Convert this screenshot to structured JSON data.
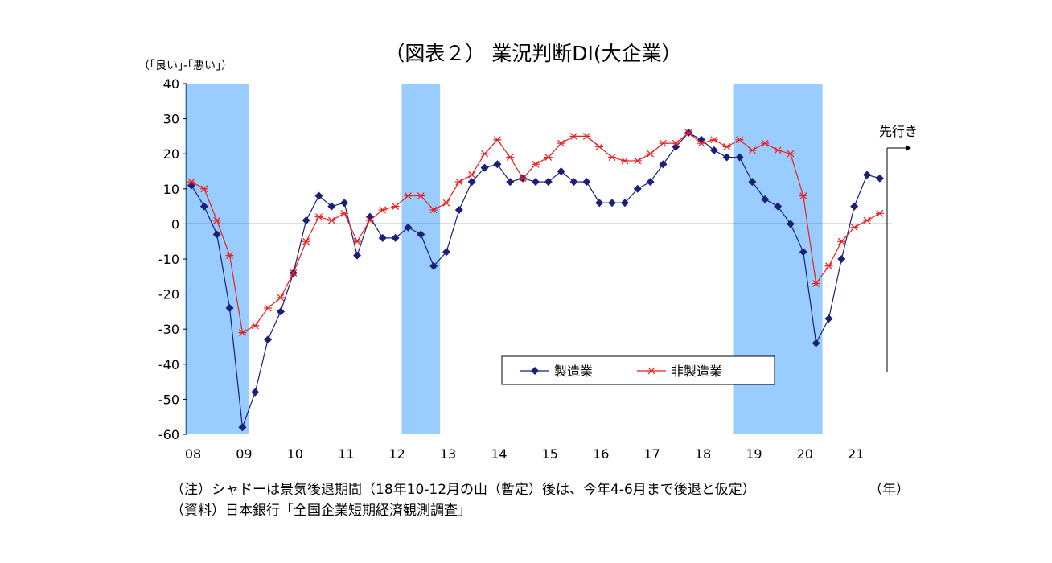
{
  "chart_data": {
    "type": "line",
    "title": "（図表２） 業況判断DI(大企業）",
    "ylabel": "（｢良い｣-｢悪い｣）",
    "xlabel": "（年）",
    "ylim": [
      -60,
      40
    ],
    "yticks": [
      40,
      30,
      20,
      10,
      0,
      -10,
      -20,
      -30,
      -40,
      -50,
      -60
    ],
    "xtick_labels": [
      "08",
      "09",
      "10",
      "11",
      "12",
      "13",
      "14",
      "15",
      "16",
      "17",
      "18",
      "19",
      "20",
      "21"
    ],
    "forecast_label": "先行き",
    "grid": false,
    "legend_position": "bottom-center",
    "recession_shading": [
      {
        "from": "2008Q1",
        "to": "2009Q1"
      },
      {
        "from": "2012Q2",
        "to": "2012Q4"
      },
      {
        "from": "2018Q4",
        "to": "2020Q2"
      }
    ],
    "x": [
      "2008Q1",
      "2008Q2",
      "2008Q3",
      "2008Q4",
      "2009Q1",
      "2009Q2",
      "2009Q3",
      "2009Q4",
      "2010Q1",
      "2010Q2",
      "2010Q3",
      "2010Q4",
      "2011Q1",
      "2011Q2",
      "2011Q3",
      "2011Q4",
      "2012Q1",
      "2012Q2",
      "2012Q3",
      "2012Q4",
      "2013Q1",
      "2013Q2",
      "2013Q3",
      "2013Q4",
      "2014Q1",
      "2014Q2",
      "2014Q3",
      "2014Q4",
      "2015Q1",
      "2015Q2",
      "2015Q3",
      "2015Q4",
      "2016Q1",
      "2016Q2",
      "2016Q3",
      "2016Q4",
      "2017Q1",
      "2017Q2",
      "2017Q3",
      "2017Q4",
      "2018Q1",
      "2018Q2",
      "2018Q3",
      "2018Q4",
      "2019Q1",
      "2019Q2",
      "2019Q3",
      "2019Q4",
      "2020Q1",
      "2020Q2",
      "2020Q3",
      "2020Q4",
      "2021Q1",
      "2021Q2",
      "2021Q3"
    ],
    "series": [
      {
        "name": "製造業",
        "color": "#1a1f7a",
        "marker": "diamond",
        "values": [
          11,
          5,
          -3,
          -24,
          -58,
          -48,
          -33,
          -25,
          -14,
          1,
          8,
          5,
          6,
          -9,
          2,
          -4,
          -4,
          -1,
          -3,
          -12,
          -8,
          4,
          12,
          16,
          17,
          12,
          13,
          12,
          12,
          15,
          12,
          12,
          6,
          6,
          6,
          10,
          12,
          17,
          22,
          26,
          24,
          21,
          19,
          19,
          12,
          7,
          5,
          0,
          -8,
          -34,
          -27,
          -10,
          5,
          14,
          13
        ]
      },
      {
        "name": "非製造業",
        "color": "#e8201e",
        "marker": "asterisk",
        "values": [
          12,
          10,
          1,
          -9,
          -31,
          -29,
          -24,
          -21,
          -14,
          -5,
          2,
          1,
          3,
          -5,
          1,
          4,
          5,
          8,
          8,
          4,
          6,
          12,
          14,
          20,
          24,
          19,
          13,
          17,
          19,
          23,
          25,
          25,
          22,
          19,
          18,
          18,
          20,
          23,
          23,
          26,
          23,
          24,
          22,
          24,
          21,
          23,
          21,
          20,
          8,
          -17,
          -12,
          -5,
          -1,
          1,
          3
        ]
      }
    ]
  },
  "notes": {
    "note1": "（注）シャドーは景気後退期間（18年10-12月の山（暫定）後は、今年4-6月まで後退と仮定）",
    "note2": "（資料）日本銀行「全国企業短期経済観測調査」"
  },
  "colors": {
    "shade": "#99ccff",
    "axis": "#000000"
  }
}
